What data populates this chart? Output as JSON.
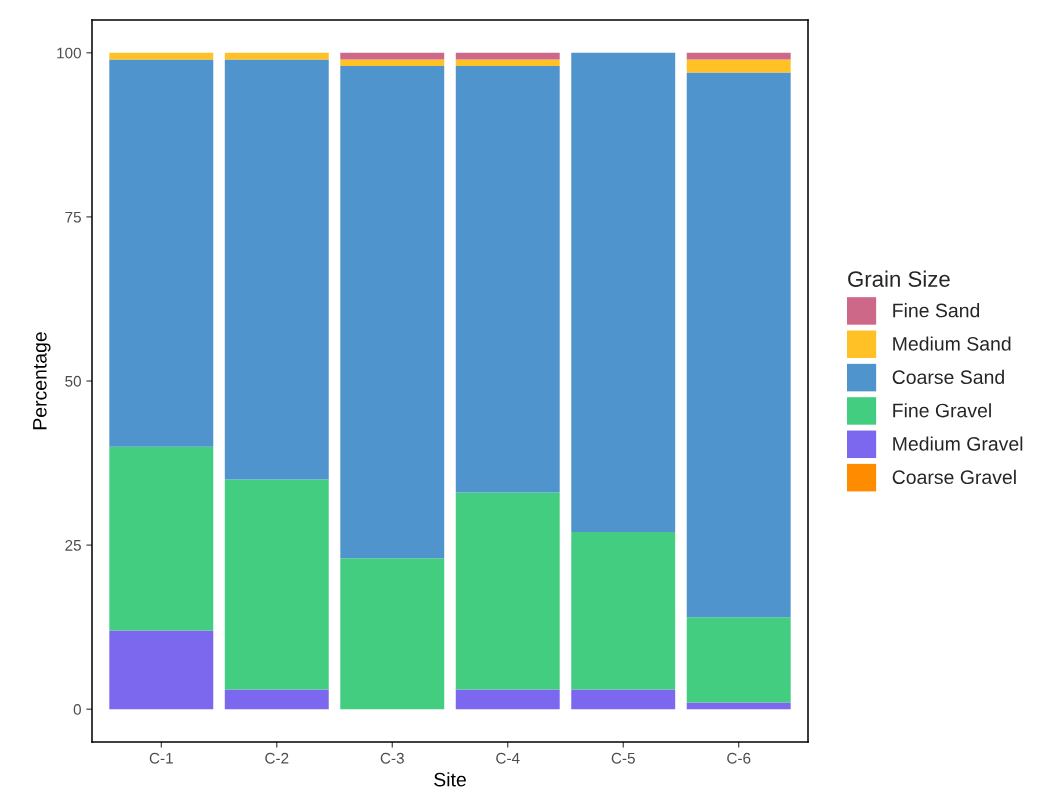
{
  "chart_data": {
    "type": "bar",
    "xlabel": "Site",
    "ylabel": "Percentage",
    "legend_title": "Grain Size",
    "categories": [
      "C-1",
      "C-2",
      "C-3",
      "C-4",
      "C-5",
      "C-6"
    ],
    "stacked": true,
    "ylim": [
      -5,
      105
    ],
    "yticks": [
      0,
      25,
      50,
      75,
      100
    ],
    "grid": false,
    "legend": "right",
    "series": [
      {
        "name": "Coarse Gravel",
        "color": "#ff8c00",
        "values": [
          0,
          0,
          0,
          0,
          0,
          0
        ]
      },
      {
        "name": "Medium Gravel",
        "color": "#7b68ee",
        "values": [
          12,
          3,
          0,
          3,
          3,
          1
        ]
      },
      {
        "name": "Fine Gravel",
        "color": "#43cd80",
        "values": [
          28,
          32,
          23,
          30,
          24,
          13
        ]
      },
      {
        "name": "Coarse Sand",
        "color": "#4f94cd",
        "values": [
          59,
          64,
          75,
          65,
          73,
          83
        ]
      },
      {
        "name": "Medium Sand",
        "color": "#ffc125",
        "values": [
          1,
          1,
          1,
          1,
          0,
          2
        ]
      },
      {
        "name": "Fine Sand",
        "color": "#cd6889",
        "values": [
          0,
          0,
          1,
          1,
          0,
          1
        ]
      }
    ]
  }
}
